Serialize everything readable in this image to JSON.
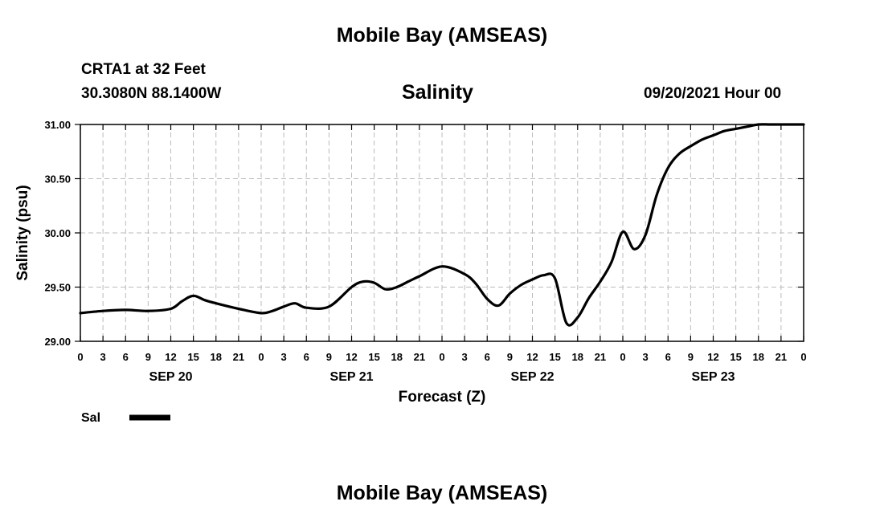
{
  "header": {
    "title": "Mobile Bay (AMSEAS)",
    "station": "CRTA1 at 32 Feet",
    "coords": "30.3080N  88.1400W",
    "variable": "Salinity",
    "run_time": "09/20/2021 Hour 00"
  },
  "footer": {
    "title": "Mobile Bay (AMSEAS)"
  },
  "colors": {
    "line": "#000000",
    "grid": "#bbbbbb",
    "axis": "#000000"
  },
  "chart_data": {
    "type": "line",
    "title": "Salinity",
    "xlabel": "Forecast (Z)",
    "ylabel": "Salinity (psu)",
    "xlim": [
      0,
      96
    ],
    "ylim": [
      29.0,
      31.0
    ],
    "yticks": [
      29.0,
      29.5,
      30.0,
      30.5,
      31.0
    ],
    "ytick_labels": [
      "29.00",
      "29.50",
      "30.00",
      "30.50",
      "31.00"
    ],
    "xticks": [
      0,
      3,
      6,
      9,
      12,
      15,
      18,
      21,
      24,
      27,
      30,
      33,
      36,
      39,
      42,
      45,
      48,
      51,
      54,
      57,
      60,
      63,
      66,
      69,
      72,
      75,
      78,
      81,
      84,
      87,
      90,
      93,
      96
    ],
    "xtick_labels": [
      "0",
      "3",
      "6",
      "9",
      "12",
      "15",
      "18",
      "21",
      "0",
      "3",
      "6",
      "9",
      "12",
      "15",
      "18",
      "21",
      "0",
      "3",
      "6",
      "9",
      "12",
      "15",
      "18",
      "21",
      "0",
      "3",
      "6",
      "9",
      "12",
      "15",
      "18",
      "21",
      "0"
    ],
    "day_labels": [
      {
        "x": 12,
        "label": "SEP 20"
      },
      {
        "x": 36,
        "label": "SEP 21"
      },
      {
        "x": 60,
        "label": "SEP 22"
      },
      {
        "x": 84,
        "label": "SEP 23"
      }
    ],
    "grid": true,
    "legend": {
      "position": "bottom-left",
      "label": "Sal"
    },
    "series": [
      {
        "name": "Sal",
        "x": [
          0,
          3,
          6,
          9,
          12,
          13.5,
          15,
          16.5,
          18,
          21,
          24,
          25.5,
          27,
          28.5,
          30,
          33,
          36,
          37.5,
          39,
          40.5,
          42,
          43.5,
          45,
          48,
          51,
          52.5,
          54,
          55.5,
          57,
          58.5,
          60,
          61.5,
          63,
          64.5,
          66,
          67.5,
          69,
          70.5,
          72,
          73.5,
          75,
          76.5,
          78,
          79.5,
          81,
          82.5,
          84,
          85.5,
          87,
          88.5,
          90,
          91.5,
          93,
          94.5,
          96
        ],
        "values": [
          29.26,
          29.28,
          29.29,
          29.28,
          29.3,
          29.37,
          29.42,
          29.38,
          29.35,
          29.3,
          29.26,
          29.28,
          29.32,
          29.35,
          29.31,
          29.32,
          29.5,
          29.55,
          29.54,
          29.48,
          29.5,
          29.55,
          29.6,
          29.69,
          29.62,
          29.53,
          29.39,
          29.33,
          29.44,
          29.52,
          29.57,
          29.61,
          29.58,
          29.17,
          29.22,
          29.4,
          29.55,
          29.73,
          30.01,
          29.85,
          29.98,
          30.35,
          30.6,
          30.73,
          30.8,
          30.86,
          30.9,
          30.94,
          30.96,
          30.98,
          31.0,
          31.0,
          31.0,
          31.0,
          31.0
        ]
      }
    ]
  }
}
